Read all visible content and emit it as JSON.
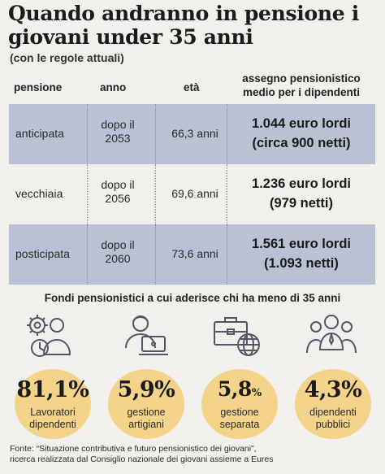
{
  "title": "Quando andranno in pensione i giovani under 35 anni",
  "subtitle": "(con le regole attuali)",
  "table": {
    "headers": {
      "pensione": "pensione",
      "anno": "anno",
      "eta": "età",
      "assegno_line1": "assegno pensionistico",
      "assegno_line2": "medio per i dipendenti"
    },
    "rows": [
      {
        "pensione": "anticipata",
        "anno_line1": "dopo il",
        "anno_line2": "2053",
        "eta": "66,3 anni",
        "lordi": "1.044 euro lordi",
        "netti": "(circa 900 netti)"
      },
      {
        "pensione": "vecchiaia",
        "anno_line1": "dopo il",
        "anno_line2": "2056",
        "eta": "69,6 anni",
        "lordi": "1.236 euro lordi",
        "netti": "(979 netti)"
      },
      {
        "pensione": "posticipata",
        "anno_line1": "dopo il",
        "anno_line2": "2060",
        "eta": "73,6 anni",
        "lordi": "1.561 euro lordi",
        "netti": "(1.093 netti)"
      }
    ],
    "colors": {
      "shaded_row": "#b9c2d4"
    }
  },
  "fondi": {
    "title": "Fondi pensionistici a cui aderisce chi ha meno di 35 anni",
    "bubble_color": "#f3d48a",
    "items": [
      {
        "icon": "worker-clock-gear-icon",
        "value": "81,1",
        "sign": "%",
        "label_line1": "Lavoratori",
        "label_line2": "dipendenti"
      },
      {
        "icon": "artisan-laptop-icon",
        "value": "5,9",
        "sign": "%",
        "label_line1": "gestione",
        "label_line2": "artigiani"
      },
      {
        "icon": "briefcase-globe-icon",
        "value": "5,8",
        "sign": "%",
        "label_line1": "gestione",
        "label_line2": "separata"
      },
      {
        "icon": "public-employees-group-icon",
        "value": "4,3",
        "sign": "%",
        "label_line1": "dipendenti",
        "label_line2": "pubblici"
      }
    ]
  },
  "source": {
    "line1": "Fonte: “Situazione contributiva e futuro pensionistico dei giovani”,",
    "line2": "ricerca realizzata dal Consiglio nazionale dei giovani assieme a Eures"
  }
}
